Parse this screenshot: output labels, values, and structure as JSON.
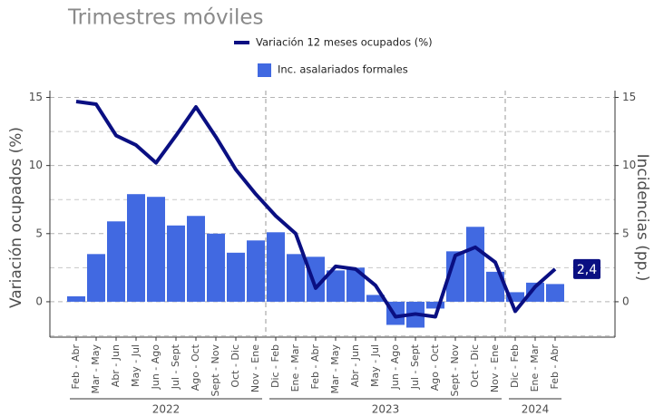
{
  "chart_data": {
    "type": "combo",
    "subtitle": "Trimestres móviles",
    "y_label": "Variación ocupados (%)",
    "y2_label": "Incidencias (pp.)",
    "categories": [
      "Feb - Abr",
      "Mar - May",
      "Abr - Jun",
      "May - Jul",
      "Jun - Ago",
      "Jul - Sept",
      "Ago - Oct",
      "Sept - Nov",
      "Oct - Dic",
      "Nov - Ene",
      "Dic - Feb",
      "Ene - Mar",
      "Feb - Abr",
      "Mar - May",
      "Abr - Jun",
      "May - Jul",
      "Jun - Ago",
      "Jul - Sept",
      "Ago - Oct",
      "Sept - Nov",
      "Oct - Dic",
      "Nov - Ene",
      "Dic - Feb",
      "Ene - Mar",
      "Feb - Abr"
    ],
    "year_groups": [
      {
        "label": "2022",
        "size": 10
      },
      {
        "label": "2023",
        "size": 12
      },
      {
        "label": "2024",
        "size": 3
      }
    ],
    "series": [
      {
        "name": "Variación 12 meses ocupados (%)",
        "type": "line",
        "color": "#0a0f82",
        "values": [
          14.7,
          14.5,
          12.2,
          11.5,
          10.2,
          12.2,
          14.3,
          12.1,
          9.7,
          7.9,
          6.3,
          5.0,
          1.0,
          2.6,
          2.4,
          1.2,
          -1.1,
          -0.9,
          -1.1,
          3.4,
          4.0,
          2.9,
          -0.7,
          1.1,
          2.4
        ],
        "value_labels": [
          null,
          null,
          null,
          null,
          null,
          null,
          null,
          null,
          null,
          null,
          null,
          null,
          null,
          null,
          null,
          null,
          null,
          null,
          null,
          null,
          null,
          null,
          null,
          null,
          "2,4"
        ]
      },
      {
        "name": "Inc. asalariados formales",
        "type": "bar",
        "color": "#4169e1",
        "axis": "y2",
        "values": [
          0.4,
          3.5,
          5.9,
          7.9,
          7.7,
          5.6,
          6.3,
          5.0,
          3.6,
          4.5,
          5.1,
          3.5,
          3.3,
          2.3,
          2.5,
          0.5,
          -1.7,
          -1.9,
          -0.5,
          3.7,
          5.5,
          2.2,
          0.7,
          1.4,
          1.3
        ]
      }
    ],
    "ylim": [
      -2.6,
      15.5
    ],
    "yticks": [
      0,
      5,
      10,
      15
    ],
    "y2lim": [
      -2.6,
      15.5
    ],
    "y2ticks": [
      0,
      5,
      10,
      15
    ],
    "minor_grid": [
      -2.5,
      2.5,
      7.5,
      12.5
    ],
    "grid": true
  }
}
